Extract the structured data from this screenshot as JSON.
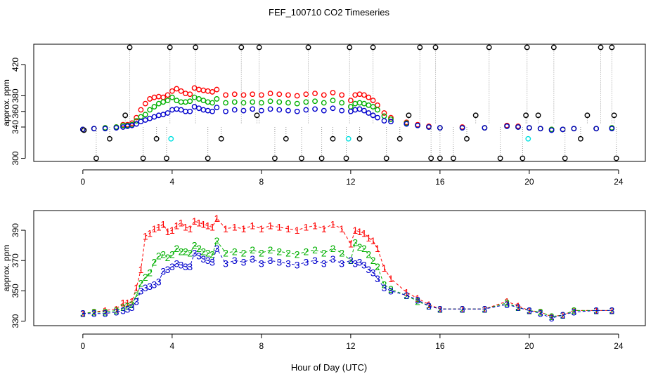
{
  "chart_data": [
    {
      "type": "scatter",
      "title": "FEF_100710  CO2 Timeseries",
      "xlabel": "",
      "ylabel": "approx. ppm",
      "xlim": [
        -2.2,
        25.2
      ],
      "ylim": [
        296,
        446
      ],
      "xticks": [
        0,
        4,
        8,
        12,
        16,
        20,
        24
      ],
      "yticks": [
        300,
        340,
        360,
        380,
        420
      ],
      "grid": false,
      "series": [
        {
          "color": "#ff0000",
          "marker": "circle",
          "x": [
            0.0,
            0.5,
            1.0,
            1.5,
            1.8,
            2.0,
            2.2,
            2.4,
            2.6,
            2.8,
            3.0,
            3.2,
            3.4,
            3.6,
            3.8,
            4.0,
            4.2,
            4.4,
            4.6,
            4.8,
            5.0,
            5.2,
            5.4,
            5.6,
            5.8,
            6.0,
            6.4,
            6.8,
            7.2,
            7.6,
            8.0,
            8.4,
            8.8,
            9.2,
            9.6,
            10.0,
            10.4,
            10.8,
            11.2,
            11.6,
            12.0,
            12.2,
            12.4,
            12.6,
            12.8,
            13.0,
            13.2,
            13.5,
            13.8,
            14.5,
            15.0,
            15.5,
            16.0,
            17.0,
            18.0,
            19.0,
            19.5,
            20.0,
            20.5,
            21.0,
            21.5,
            22.0,
            23.0,
            23.7
          ],
          "y": [
            337,
            338,
            339,
            340,
            343,
            343,
            345,
            352,
            362,
            370,
            376,
            378,
            379,
            378,
            381,
            386,
            389,
            386,
            383,
            382,
            390,
            388,
            387,
            386,
            385,
            388,
            381,
            382,
            381,
            382,
            381,
            383,
            382,
            381,
            380,
            382,
            383,
            381,
            384,
            381,
            374,
            381,
            382,
            381,
            378,
            374,
            368,
            358,
            352,
            346,
            343,
            341,
            339,
            340,
            339,
            342,
            341,
            339,
            338,
            337,
            337,
            338,
            338,
            339
          ]
        },
        {
          "color": "#00b000",
          "marker": "circle",
          "x": [
            0.0,
            0.5,
            1.0,
            1.5,
            1.8,
            2.0,
            2.2,
            2.4,
            2.6,
            2.8,
            3.0,
            3.2,
            3.4,
            3.6,
            3.8,
            4.0,
            4.2,
            4.4,
            4.6,
            4.8,
            5.0,
            5.2,
            5.4,
            5.6,
            5.8,
            6.0,
            6.4,
            6.8,
            7.2,
            7.6,
            8.0,
            8.4,
            8.8,
            9.2,
            9.6,
            10.0,
            10.4,
            10.8,
            11.2,
            11.6,
            12.0,
            12.2,
            12.4,
            12.6,
            12.8,
            13.0,
            13.2,
            13.5,
            13.8,
            14.5,
            15.0,
            15.5,
            16.0,
            17.0,
            18.0,
            19.0,
            19.5,
            20.0,
            20.5,
            21.0,
            21.5,
            22.0,
            23.0,
            23.7
          ],
          "y": [
            337,
            338,
            339,
            340,
            342,
            342,
            343,
            348,
            353,
            356,
            362,
            366,
            370,
            372,
            374,
            378,
            374,
            372,
            372,
            373,
            378,
            376,
            374,
            372,
            371,
            376,
            371,
            372,
            371,
            372,
            371,
            373,
            372,
            371,
            370,
            372,
            373,
            371,
            374,
            371,
            366,
            370,
            371,
            370,
            368,
            366,
            362,
            354,
            350,
            345,
            342,
            340,
            339,
            339,
            339,
            341,
            340,
            339,
            338,
            337,
            337,
            338,
            338,
            339
          ]
        },
        {
          "color": "#0000cc",
          "marker": "circle",
          "x": [
            0.0,
            0.5,
            1.0,
            1.5,
            1.8,
            2.0,
            2.2,
            2.4,
            2.6,
            2.8,
            3.0,
            3.2,
            3.4,
            3.6,
            3.8,
            4.0,
            4.2,
            4.4,
            4.6,
            4.8,
            5.0,
            5.2,
            5.4,
            5.6,
            5.8,
            6.0,
            6.4,
            6.8,
            7.2,
            7.6,
            8.0,
            8.4,
            8.8,
            9.2,
            9.6,
            10.0,
            10.4,
            10.8,
            11.2,
            11.6,
            12.0,
            12.2,
            12.4,
            12.6,
            12.8,
            13.0,
            13.2,
            13.5,
            13.8,
            14.5,
            15.0,
            15.5,
            16.0,
            17.0,
            18.0,
            19.0,
            19.5,
            20.0,
            20.5,
            21.0,
            21.5,
            22.0,
            23.0,
            23.7
          ],
          "y": [
            337,
            338,
            338,
            339,
            340,
            341,
            342,
            344,
            347,
            349,
            351,
            353,
            355,
            356,
            358,
            362,
            363,
            362,
            360,
            360,
            366,
            364,
            362,
            361,
            360,
            365,
            360,
            362,
            361,
            363,
            361,
            363,
            362,
            361,
            360,
            362,
            363,
            361,
            364,
            361,
            360,
            362,
            363,
            361,
            358,
            355,
            352,
            348,
            347,
            344,
            342,
            340,
            339,
            339,
            339,
            341,
            340,
            339,
            338,
            336,
            337,
            338,
            338,
            338
          ]
        },
        {
          "color": "#000000",
          "marker": "circle",
          "x": [
            0.05,
            0.6,
            1.2,
            1.9,
            2.1,
            2.7,
            3.3,
            3.75,
            3.9,
            5.05,
            5.6,
            6.2,
            7.1,
            7.8,
            7.9,
            8.6,
            9.1,
            9.8,
            10.1,
            10.7,
            11.2,
            11.8,
            11.95,
            12.4,
            13.0,
            13.6,
            14.2,
            14.6,
            15.1,
            15.6,
            15.8,
            16.0,
            16.6,
            17.2,
            17.6,
            18.2,
            18.7,
            19.7,
            19.85,
            19.9,
            20.4,
            21.1,
            21.6,
            22.3,
            22.6,
            23.2,
            23.7,
            23.8,
            23.9
          ],
          "y": [
            336,
            300,
            325,
            355,
            442,
            300,
            325,
            300,
            442,
            442,
            300,
            325,
            442,
            355,
            442,
            300,
            325,
            300,
            442,
            300,
            325,
            300,
            442,
            325,
            442,
            300,
            325,
            355,
            442,
            300,
            442,
            300,
            300,
            325,
            355,
            442,
            300,
            300,
            355,
            442,
            355,
            442,
            300,
            325,
            355,
            442,
            442,
            355,
            300
          ]
        },
        {
          "color": "#00e0e0",
          "marker": "circle",
          "x": [
            3.95,
            11.9,
            19.95
          ],
          "y": [
            325,
            325,
            325
          ]
        }
      ]
    },
    {
      "type": "scatter",
      "title": "",
      "xlabel": "Hour of Day (UTC)",
      "ylabel": "approx. ppm",
      "xlim": [
        -2.2,
        25.2
      ],
      "ylim": [
        327,
        403
      ],
      "xticks": [
        0,
        4,
        8,
        12,
        16,
        20,
        24
      ],
      "yticks": [
        330,
        350,
        370,
        390
      ],
      "grid": false,
      "series": [
        {
          "color": "#ff0000",
          "marker": "1",
          "x": [
            0.0,
            0.5,
            1.0,
            1.5,
            1.8,
            2.0,
            2.2,
            2.4,
            2.6,
            2.8,
            3.0,
            3.2,
            3.4,
            3.6,
            3.8,
            4.0,
            4.2,
            4.4,
            4.6,
            4.8,
            5.0,
            5.2,
            5.4,
            5.6,
            5.8,
            6.0,
            6.4,
            6.8,
            7.2,
            7.6,
            8.0,
            8.4,
            8.8,
            9.2,
            9.6,
            10.0,
            10.4,
            10.8,
            11.2,
            11.6,
            12.0,
            12.2,
            12.4,
            12.6,
            12.8,
            13.0,
            13.2,
            13.5,
            13.8,
            14.5,
            15.0,
            15.5,
            16.0,
            17.0,
            18.0,
            19.0,
            19.5,
            20.0,
            20.5,
            21.0,
            21.5,
            22.0,
            23.0,
            23.7
          ],
          "y": [
            335,
            336,
            337,
            338,
            342,
            342,
            343,
            352,
            364,
            386,
            388,
            391,
            392,
            394,
            389,
            390,
            393,
            395,
            392,
            391,
            396,
            395,
            394,
            393,
            392,
            398,
            391,
            392,
            391,
            393,
            391,
            393,
            392,
            391,
            390,
            392,
            393,
            391,
            394,
            391,
            381,
            390,
            389,
            388,
            385,
            383,
            378,
            365,
            358,
            349,
            345,
            341,
            338,
            338,
            338,
            343,
            340,
            337,
            336,
            333,
            334,
            337,
            337,
            337
          ]
        },
        {
          "color": "#00b000",
          "marker": "2",
          "x": [
            0.0,
            0.5,
            1.0,
            1.5,
            1.8,
            2.0,
            2.2,
            2.4,
            2.6,
            2.8,
            3.0,
            3.2,
            3.4,
            3.6,
            3.8,
            4.0,
            4.2,
            4.4,
            4.6,
            4.8,
            5.0,
            5.2,
            5.4,
            5.6,
            5.8,
            6.0,
            6.4,
            6.8,
            7.2,
            7.6,
            8.0,
            8.4,
            8.8,
            9.2,
            9.6,
            10.0,
            10.4,
            10.8,
            11.2,
            11.6,
            12.0,
            12.2,
            12.4,
            12.6,
            12.8,
            13.0,
            13.2,
            13.5,
            13.8,
            14.5,
            15.0,
            15.5,
            16.0,
            17.0,
            18.0,
            19.0,
            19.5,
            20.0,
            20.5,
            21.0,
            21.5,
            22.0,
            23.0,
            23.7
          ],
          "y": [
            335,
            336,
            336,
            337,
            339,
            340,
            341,
            347,
            355,
            359,
            362,
            369,
            373,
            374,
            372,
            374,
            378,
            376,
            376,
            375,
            380,
            378,
            376,
            375,
            374,
            383,
            375,
            376,
            375,
            377,
            375,
            377,
            376,
            375,
            374,
            376,
            377,
            375,
            378,
            375,
            370,
            382,
            379,
            378,
            374,
            370,
            366,
            354,
            351,
            347,
            343,
            340,
            338,
            338,
            338,
            342,
            339,
            337,
            336,
            333,
            334,
            337,
            337,
            337
          ]
        },
        {
          "color": "#0000cc",
          "marker": "3",
          "x": [
            0.0,
            0.5,
            1.0,
            1.5,
            1.8,
            2.0,
            2.2,
            2.4,
            2.6,
            2.8,
            3.0,
            3.2,
            3.4,
            3.6,
            3.8,
            4.0,
            4.2,
            4.4,
            4.6,
            4.8,
            5.0,
            5.2,
            5.4,
            5.6,
            5.8,
            6.0,
            6.4,
            6.8,
            7.2,
            7.6,
            8.0,
            8.4,
            8.8,
            9.2,
            9.6,
            10.0,
            10.4,
            10.8,
            11.2,
            11.6,
            12.0,
            12.2,
            12.4,
            12.6,
            12.8,
            13.0,
            13.2,
            13.5,
            13.8,
            14.5,
            15.0,
            15.5,
            16.0,
            17.0,
            18.0,
            19.0,
            19.5,
            20.0,
            20.5,
            21.0,
            21.5,
            22.0,
            23.0,
            23.7
          ],
          "y": [
            335,
            335,
            335,
            336,
            337,
            338,
            339,
            343,
            350,
            352,
            353,
            354,
            356,
            363,
            364,
            366,
            368,
            367,
            366,
            366,
            375,
            373,
            371,
            370,
            369,
            378,
            368,
            370,
            369,
            371,
            368,
            370,
            369,
            368,
            367,
            369,
            370,
            368,
            371,
            368,
            370,
            368,
            369,
            367,
            364,
            362,
            358,
            352,
            350,
            347,
            344,
            340,
            338,
            338,
            338,
            341,
            339,
            337,
            335,
            332,
            334,
            336,
            337,
            337
          ]
        }
      ]
    }
  ]
}
